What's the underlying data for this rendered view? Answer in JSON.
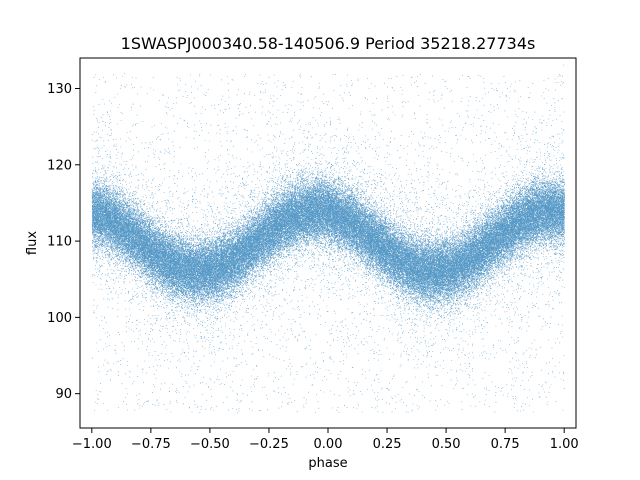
{
  "chart_data": {
    "type": "scatter",
    "title": "1SWASPJ000340.58-140506.9 Period 35218.27734s",
    "xlabel": "phase",
    "ylabel": "flux",
    "xlim": [
      -1.05,
      1.05
    ],
    "ylim": [
      85.5,
      134
    ],
    "xticks": [
      -1.0,
      -0.75,
      -0.5,
      -0.25,
      0.0,
      0.25,
      0.5,
      0.75,
      1.0
    ],
    "xtick_labels": [
      "−1.00",
      "−0.75",
      "−0.50",
      "−0.25",
      "0.00",
      "0.25",
      "0.50",
      "0.75",
      "1.00"
    ],
    "yticks": [
      90,
      100,
      110,
      120,
      130
    ],
    "ytick_labels": [
      "90",
      "100",
      "110",
      "120",
      "130"
    ],
    "grid": false,
    "legend": "none",
    "point_color": "#1f77b4",
    "series": [
      {
        "model": "sinusoid",
        "phase_range": [
          -1.0,
          1.0
        ],
        "mean_flux": 110.0,
        "amplitude": 4.0,
        "peak_phase": -0.05,
        "period_in_phase": 1.0,
        "core_scatter": 2.0,
        "outlier_range": [
          87.5,
          132
        ],
        "approx_points": 90000
      }
    ]
  }
}
